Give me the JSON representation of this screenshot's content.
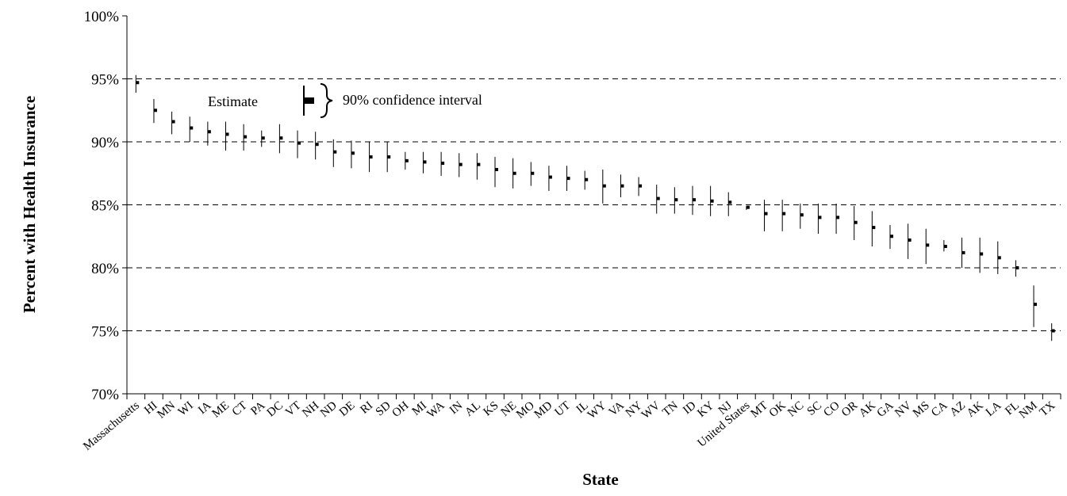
{
  "chart_data": {
    "type": "scatter",
    "title": "",
    "xlabel": "State",
    "ylabel": "Percent with Health Insurance",
    "ylim": [
      70,
      100
    ],
    "yticks": [
      70,
      75,
      80,
      85,
      90,
      95,
      100
    ],
    "ytick_labels": [
      "70%",
      "75%",
      "80%",
      "85%",
      "90%",
      "95%",
      "100%"
    ],
    "grid": "horizontal dashed",
    "legend": {
      "estimate_label": "Estimate",
      "ci_label": "90% confidence interval",
      "placement": "upper-left"
    },
    "categories": [
      "Massachusetts",
      "HI",
      "MN",
      "WI",
      "IA",
      "ME",
      "CT",
      "PA",
      "DC",
      "VT",
      "NH",
      "ND",
      "DE",
      "RI",
      "SD",
      "OH",
      "MI",
      "WA",
      "IN",
      "AL",
      "KS",
      "NE",
      "MO",
      "MD",
      "UT",
      "IL",
      "WY",
      "VA",
      "NY",
      "WV",
      "TN",
      "ID",
      "KY",
      "NJ",
      "United States",
      "MT",
      "OK",
      "NC",
      "SC",
      "CO",
      "OR",
      "AK",
      "GA",
      "NV",
      "MS",
      "CA",
      "AZ",
      "AK",
      "LA",
      "FL",
      "NM",
      "TX"
    ],
    "series": [
      {
        "estimate": [
          94.7,
          92.5,
          91.6,
          91.1,
          90.8,
          90.6,
          90.4,
          90.3,
          90.3,
          89.9,
          89.8,
          89.2,
          89.1,
          88.8,
          88.8,
          88.5,
          88.4,
          88.3,
          88.2,
          88.2,
          87.8,
          87.5,
          87.5,
          87.2,
          87.1,
          87.0,
          86.5,
          86.5,
          86.5,
          85.5,
          85.4,
          85.4,
          85.3,
          85.2,
          84.8,
          84.3,
          84.3,
          84.2,
          84.0,
          84.0,
          83.6,
          83.2,
          82.5,
          82.2,
          81.8,
          81.7,
          81.2,
          81.1,
          80.8,
          80.0,
          77.1,
          75.0
        ],
        "lower": [
          93.9,
          91.5,
          90.6,
          90.0,
          89.7,
          89.3,
          89.3,
          89.6,
          89.1,
          88.7,
          88.6,
          88.0,
          87.9,
          87.6,
          87.6,
          87.8,
          87.5,
          87.3,
          87.2,
          87.0,
          86.4,
          86.3,
          86.5,
          86.1,
          86.1,
          86.2,
          85.1,
          85.6,
          85.7,
          84.3,
          84.3,
          84.2,
          84.1,
          84.1,
          84.6,
          82.9,
          82.9,
          83.1,
          82.7,
          82.7,
          82.2,
          81.7,
          81.5,
          80.7,
          80.3,
          81.3,
          80.0,
          79.6,
          79.5,
          79.3,
          75.3,
          74.2
        ],
        "upper": [
          95.3,
          93.4,
          92.4,
          92.0,
          91.6,
          91.6,
          91.4,
          90.9,
          91.4,
          90.9,
          90.8,
          90.2,
          90.1,
          90.0,
          90.0,
          89.2,
          89.2,
          89.2,
          89.1,
          89.1,
          88.8,
          88.7,
          88.4,
          88.1,
          88.1,
          87.7,
          87.8,
          87.4,
          87.2,
          86.6,
          86.4,
          86.5,
          86.5,
          86.0,
          84.9,
          85.4,
          85.4,
          85.1,
          85.1,
          85.1,
          84.9,
          84.5,
          83.4,
          83.5,
          83.1,
          82.2,
          82.4,
          82.4,
          82.1,
          80.6,
          78.6,
          75.6
        ]
      }
    ]
  }
}
